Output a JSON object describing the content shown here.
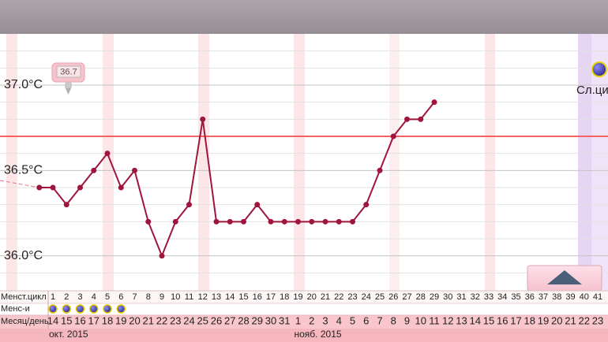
{
  "chart_data": {
    "type": "line",
    "x": [
      0,
      1,
      2,
      3,
      4,
      5,
      6,
      7,
      8,
      9,
      10,
      11,
      12,
      13,
      14,
      15,
      16,
      17,
      18,
      19,
      20,
      21,
      22,
      23,
      24,
      25,
      26,
      27,
      28,
      29
    ],
    "series": [
      {
        "color": "#a0153e",
        "values": [
          36.4,
          36.4,
          36.3,
          36.4,
          36.5,
          36.6,
          36.4,
          36.5,
          36.2,
          36.0,
          36.2,
          36.3,
          36.8,
          36.2,
          36.2,
          36.2,
          36.3,
          36.2,
          36.2,
          36.2,
          36.2,
          36.2,
          36.2,
          36.2,
          36.3,
          36.5,
          36.7,
          36.8,
          36.8,
          36.9
        ]
      }
    ],
    "ylim": [
      35.8,
      37.3
    ],
    "yticks": [
      {
        "value": 36.0,
        "label": "36.0°C"
      },
      {
        "value": 36.5,
        "label": "36.5°C"
      },
      {
        "value": 37.0,
        "label": "37.0°C"
      }
    ],
    "minor_yticks": [
      35.9,
      36.1,
      36.2,
      36.3,
      36.4,
      36.6,
      36.8,
      36.9,
      37.1,
      37.2
    ],
    "coverline": 36.7,
    "coverline_color": "#f26464",
    "next_cycle_label": "Сл.ци",
    "row_labels": [
      "Менст.цикл",
      "Менс-и",
      "Месяц/день"
    ],
    "cycle_days": [
      1,
      2,
      3,
      4,
      5,
      6,
      7,
      8,
      9,
      10,
      11,
      12,
      13,
      14,
      15,
      16,
      17,
      18,
      19,
      20,
      21,
      22,
      23,
      24,
      25,
      26,
      27,
      28,
      29,
      30,
      31,
      32,
      33,
      34,
      35,
      36,
      37,
      38,
      39,
      40,
      41
    ],
    "menses_days": [
      1,
      2,
      3,
      4,
      5,
      6
    ],
    "dates": [
      14,
      15,
      16,
      17,
      18,
      19,
      20,
      21,
      22,
      23,
      24,
      25,
      26,
      27,
      28,
      29,
      30,
      31,
      1,
      2,
      3,
      4,
      5,
      6,
      7,
      8,
      9,
      10,
      11,
      12,
      13,
      14,
      15,
      16,
      17,
      18,
      19,
      20,
      21,
      22,
      23
    ],
    "months": [
      "окт. 2015",
      "нояб. 2015"
    ]
  }
}
